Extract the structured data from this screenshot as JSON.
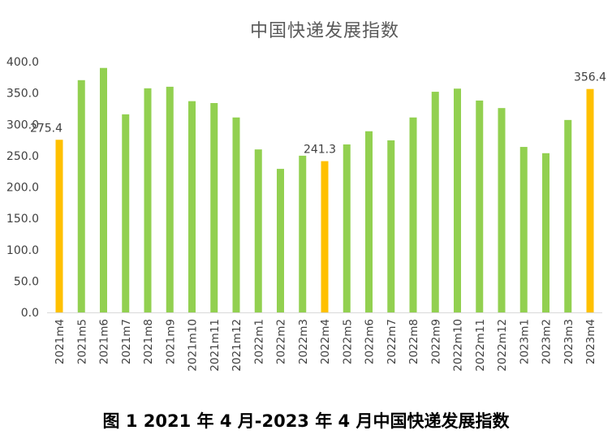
{
  "chart_data": {
    "type": "bar",
    "title": "中国快递发展指数",
    "caption": "图 1 2021 年 4 月-2023 年 4 月中国快递发展指数",
    "categories": [
      "2021m4",
      "2021m5",
      "2021m6",
      "2021m7",
      "2021m8",
      "2021m9",
      "2021m10",
      "2021m11",
      "2021m12",
      "2022m1",
      "2022m2",
      "2022m3",
      "2022m4",
      "2022m5",
      "2022m6",
      "2022m7",
      "2022m8",
      "2022m9",
      "2022m10",
      "2022m11",
      "2022m12",
      "2023m1",
      "2023m2",
      "2023m3",
      "2023m4"
    ],
    "values": [
      275.4,
      370.5,
      390,
      316,
      357.5,
      360,
      337,
      334,
      311,
      260,
      229,
      250,
      241.3,
      268,
      289,
      274.5,
      311,
      352,
      357,
      338,
      326,
      264,
      254,
      307,
      356.4
    ],
    "highlighted": [
      "2021m4",
      "2022m4",
      "2023m4"
    ],
    "data_labels": {
      "2021m4": "275.4",
      "2022m4": "241.3",
      "2023m4": "356.4"
    },
    "yticks": [
      "0.0",
      "50.0",
      "100.0",
      "150.0",
      "200.0",
      "250.0",
      "300.0",
      "350.0",
      "400.0"
    ],
    "ylim": [
      0,
      400
    ],
    "grid": false,
    "colors": {
      "bar": "#92D050",
      "highlight": "#FFC000"
    }
  }
}
